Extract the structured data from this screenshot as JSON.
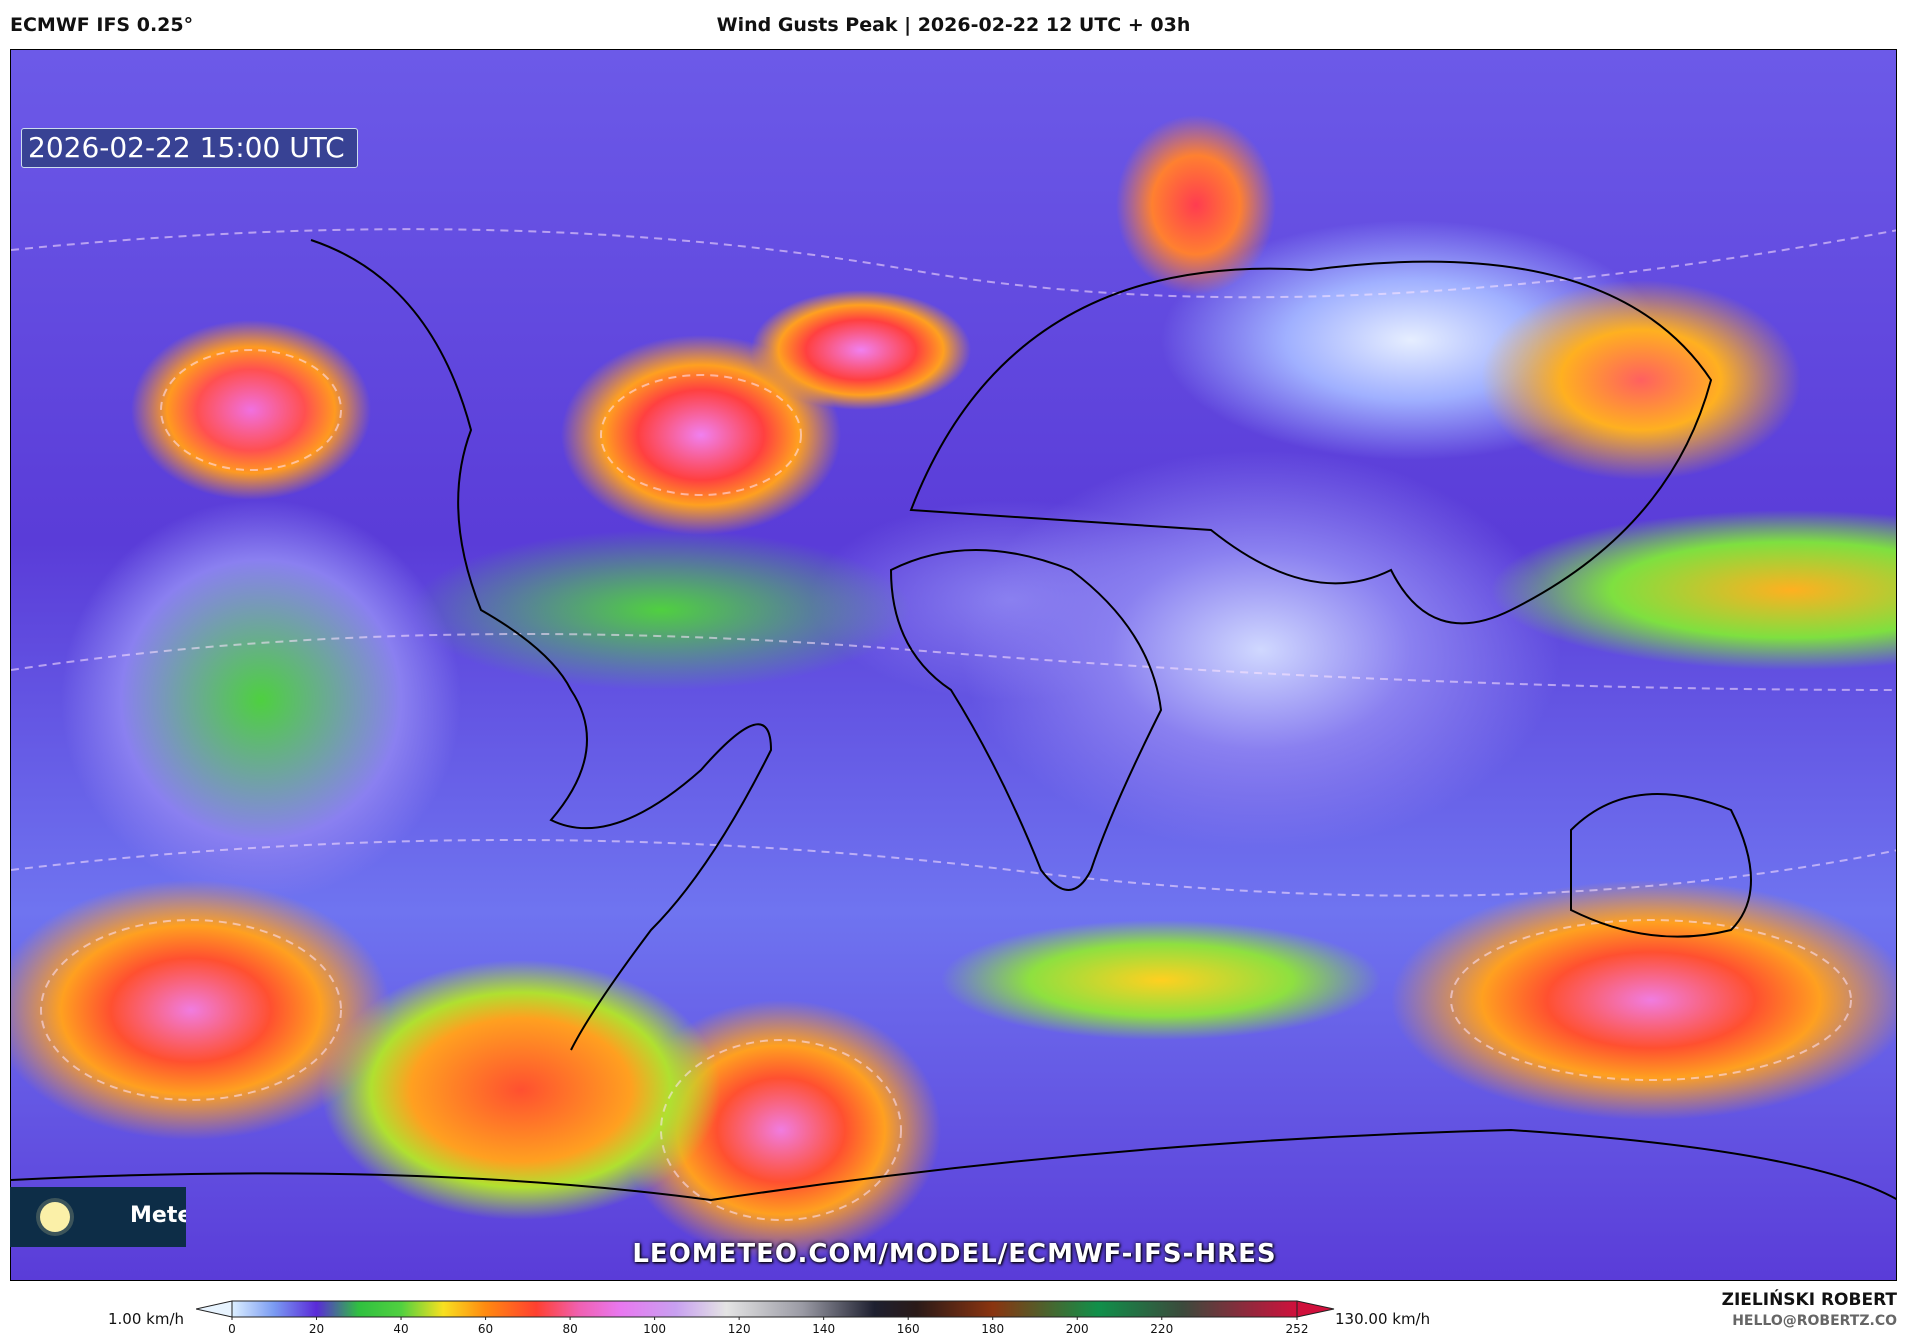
{
  "header": {
    "model": "ECMWF IFS 0.25°",
    "title": "Wind Gusts Peak | 2026-02-22 12 UTC + 03h"
  },
  "map": {
    "valid_time": "2026-02-22 15:00 UTC",
    "watermark": "LEOMETEO.COM/MODEL/ECMWF-IFS-HRES",
    "logo_text": "Meteo",
    "logo_icon": "sun-icon"
  },
  "colorbar": {
    "min_label": "1.00 km/h",
    "max_label": "130.00 km/h",
    "ticks": [
      "0",
      "20",
      "40",
      "60",
      "80",
      "100",
      "120",
      "140",
      "160",
      "180",
      "200",
      "220",
      "252"
    ],
    "tick_values": [
      0,
      20,
      40,
      60,
      80,
      100,
      120,
      140,
      160,
      180,
      200,
      220,
      252
    ],
    "stops": [
      [
        0,
        "#dcefff"
      ],
      [
        10,
        "#7a9af2"
      ],
      [
        20,
        "#5a2ad8"
      ],
      [
        30,
        "#30c040"
      ],
      [
        40,
        "#50d040"
      ],
      [
        50,
        "#f8e020"
      ],
      [
        60,
        "#ff8a10"
      ],
      [
        72,
        "#ff4030"
      ],
      [
        82,
        "#f060b0"
      ],
      [
        92,
        "#e878f0"
      ],
      [
        105,
        "#c8a0f0"
      ],
      [
        117,
        "#e4e4e4"
      ],
      [
        135,
        "#9a9aa4"
      ],
      [
        152,
        "#1e2030"
      ],
      [
        162,
        "#2a1a18"
      ],
      [
        180,
        "#8a3410"
      ],
      [
        205,
        "#10904a"
      ],
      [
        225,
        "#3c4a3c"
      ],
      [
        252,
        "#d0103c"
      ]
    ]
  },
  "credits": {
    "author": "ZIELIŃSKI ROBERT",
    "email": "HELLO@ROBERTZ.CO"
  }
}
